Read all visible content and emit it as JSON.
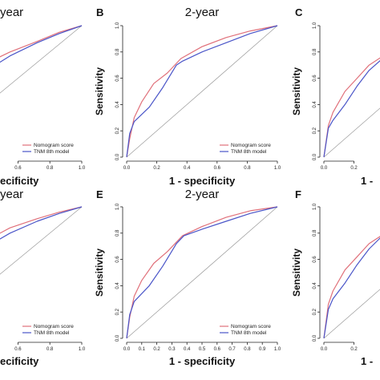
{
  "figure": {
    "background": "#ffffff"
  },
  "colors": {
    "nomogram": "#e0707a",
    "tnm": "#4a55c8",
    "diagonal": "#999999",
    "axis": "#222222"
  },
  "chart_data": [
    {
      "id": "A",
      "panel_label": "",
      "type": "line",
      "title": "year",
      "xlabel": "ecificity",
      "ylabel": "",
      "xlim": [
        0,
        1
      ],
      "ylim": [
        0,
        1
      ],
      "x_ticks": [
        0.6,
        0.8,
        1.0
      ],
      "x_tick_labels": [
        "0.6",
        "0.8",
        "1.0"
      ],
      "y_ticks": [],
      "y_tick_labels": [],
      "legend": {
        "position": "bottom-right",
        "entries": [
          "Nomogram score",
          "TNM 8th model"
        ]
      },
      "series": [
        {
          "name": "Nomogram score",
          "color": "#e0707a",
          "x": [
            0.0,
            0.2,
            0.38,
            0.55,
            0.72,
            0.86,
            1.0
          ],
          "y": [
            0.0,
            0.52,
            0.7,
            0.8,
            0.88,
            0.95,
            1.0
          ]
        },
        {
          "name": "TNM 8th model",
          "color": "#4a55c8",
          "x": [
            0.0,
            0.2,
            0.38,
            0.55,
            0.72,
            0.86,
            1.0
          ],
          "y": [
            0.0,
            0.47,
            0.64,
            0.77,
            0.87,
            0.94,
            1.0
          ]
        }
      ]
    },
    {
      "id": "B",
      "panel_label": "B",
      "type": "line",
      "title": "2-year",
      "xlabel": "1 - specificity",
      "ylabel": "Sensitivity",
      "xlim": [
        0,
        1
      ],
      "ylim": [
        0,
        1
      ],
      "x_ticks": [
        0,
        0.2,
        0.4,
        0.6,
        0.8,
        1.0
      ],
      "x_tick_labels": [
        "0.0",
        "0.2",
        "0.4",
        "0.6",
        "0.8",
        "1.0"
      ],
      "y_ticks": [
        0,
        0.2,
        0.4,
        0.6,
        0.8,
        1.0
      ],
      "y_tick_labels": [
        "0.0",
        "0.2",
        "0.4",
        "0.6",
        "0.8",
        "1.0"
      ],
      "legend": {
        "position": "bottom-right",
        "entries": [
          "Nomogram score",
          "TNM 8th model"
        ]
      },
      "series": [
        {
          "name": "Nomogram score",
          "color": "#e0707a",
          "x": [
            0.0,
            0.02,
            0.05,
            0.1,
            0.18,
            0.27,
            0.36,
            0.5,
            0.66,
            0.82,
            1.0
          ],
          "y": [
            0.0,
            0.14,
            0.3,
            0.42,
            0.56,
            0.64,
            0.75,
            0.84,
            0.91,
            0.96,
            1.0
          ]
        },
        {
          "name": "TNM 8th model",
          "color": "#4a55c8",
          "x": [
            0.0,
            0.02,
            0.05,
            0.15,
            0.24,
            0.33,
            0.37,
            0.5,
            0.66,
            0.82,
            1.0
          ],
          "y": [
            0.0,
            0.18,
            0.27,
            0.38,
            0.53,
            0.7,
            0.73,
            0.8,
            0.87,
            0.94,
            1.0
          ]
        }
      ]
    },
    {
      "id": "C",
      "panel_label": "C",
      "type": "line",
      "title": "",
      "xlabel": "1 -",
      "ylabel": "Sensitivity",
      "xlim": [
        0,
        1
      ],
      "ylim": [
        0,
        1
      ],
      "x_ticks": [
        0,
        0.2
      ],
      "x_tick_labels": [
        "0.0",
        "0.2"
      ],
      "y_ticks": [
        0,
        0.2,
        0.4,
        0.6,
        0.8,
        1.0
      ],
      "y_tick_labels": [
        "0.0",
        "0.2",
        "0.4",
        "0.6",
        "0.8",
        "1.0"
      ],
      "legend": null,
      "series": [
        {
          "name": "Nomogram score",
          "color": "#e0707a",
          "x": [
            0.0,
            0.03,
            0.06,
            0.14,
            0.22,
            0.3,
            0.38,
            0.5,
            0.7,
            1.0
          ],
          "y": [
            0.0,
            0.24,
            0.34,
            0.5,
            0.6,
            0.7,
            0.76,
            0.82,
            0.9,
            1.0
          ]
        },
        {
          "name": "TNM 8th model",
          "color": "#4a55c8",
          "x": [
            0.0,
            0.03,
            0.06,
            0.14,
            0.22,
            0.3,
            0.38,
            0.5,
            0.7,
            1.0
          ],
          "y": [
            0.0,
            0.22,
            0.28,
            0.4,
            0.54,
            0.66,
            0.74,
            0.8,
            0.89,
            1.0
          ]
        }
      ]
    },
    {
      "id": "D",
      "panel_label": "",
      "type": "line",
      "title": "year",
      "xlabel": "ecificity",
      "ylabel": "",
      "xlim": [
        0,
        1
      ],
      "ylim": [
        0,
        1
      ],
      "x_ticks": [
        0.6,
        0.8,
        1.0
      ],
      "x_tick_labels": [
        "0.6",
        "0.8",
        "1.0"
      ],
      "y_ticks": [],
      "y_tick_labels": [],
      "legend": {
        "position": "bottom-right",
        "entries": [
          "Nomogram score",
          "TNM 8th model"
        ]
      },
      "series": [
        {
          "name": "Nomogram score",
          "color": "#e0707a",
          "x": [
            0.0,
            0.2,
            0.38,
            0.55,
            0.72,
            0.86,
            1.0
          ],
          "y": [
            0.0,
            0.55,
            0.73,
            0.84,
            0.91,
            0.96,
            1.0
          ]
        },
        {
          "name": "TNM 8th model",
          "color": "#4a55c8",
          "x": [
            0.0,
            0.2,
            0.38,
            0.55,
            0.72,
            0.86,
            1.0
          ],
          "y": [
            0.0,
            0.5,
            0.68,
            0.8,
            0.89,
            0.95,
            1.0
          ]
        }
      ]
    },
    {
      "id": "E",
      "panel_label": "E",
      "type": "line",
      "title": "2-year",
      "xlabel": "1 - specificity",
      "ylabel": "Sensitivity",
      "xlim": [
        0,
        1
      ],
      "ylim": [
        0,
        1
      ],
      "x_ticks": [
        0,
        0.1,
        0.2,
        0.3,
        0.4,
        0.5,
        0.6,
        0.7,
        0.8,
        0.9,
        1.0
      ],
      "x_tick_labels": [
        "0.0",
        "0.1",
        "0.2",
        "0.3",
        "0.4",
        "0.5",
        "0.6",
        "0.7",
        "0.8",
        "0.9",
        "1.0"
      ],
      "y_ticks": [
        0,
        0.2,
        0.4,
        0.6,
        0.8,
        1.0
      ],
      "y_tick_labels": [
        "0.0",
        "0.2",
        "0.4",
        "0.6",
        "0.8",
        "1.0"
      ],
      "legend": {
        "position": "bottom-right",
        "entries": [
          "Nomogram score",
          "TNM 8th model"
        ]
      },
      "series": [
        {
          "name": "Nomogram score",
          "color": "#e0707a",
          "x": [
            0.0,
            0.02,
            0.05,
            0.1,
            0.18,
            0.27,
            0.37,
            0.5,
            0.66,
            0.82,
            1.0
          ],
          "y": [
            0.0,
            0.16,
            0.32,
            0.44,
            0.57,
            0.66,
            0.78,
            0.85,
            0.92,
            0.97,
            1.0
          ]
        },
        {
          "name": "TNM 8th model",
          "color": "#4a55c8",
          "x": [
            0.0,
            0.02,
            0.05,
            0.15,
            0.24,
            0.33,
            0.38,
            0.5,
            0.66,
            0.82,
            1.0
          ],
          "y": [
            0.0,
            0.18,
            0.28,
            0.4,
            0.55,
            0.72,
            0.78,
            0.83,
            0.89,
            0.95,
            1.0
          ]
        }
      ]
    },
    {
      "id": "F",
      "panel_label": "F",
      "type": "line",
      "title": "",
      "xlabel": "1 -",
      "ylabel": "Sensitivity",
      "xlim": [
        0,
        1
      ],
      "ylim": [
        0,
        1
      ],
      "x_ticks": [
        0,
        0.2
      ],
      "x_tick_labels": [
        "0.0",
        "0.2"
      ],
      "y_ticks": [
        0,
        0.2,
        0.4,
        0.6,
        0.8,
        1.0
      ],
      "y_tick_labels": [
        "0.0",
        "0.2",
        "0.4",
        "0.6",
        "0.8",
        "1.0"
      ],
      "legend": null,
      "series": [
        {
          "name": "Nomogram score",
          "color": "#e0707a",
          "x": [
            0.0,
            0.03,
            0.06,
            0.14,
            0.22,
            0.3,
            0.38,
            0.5,
            0.7,
            1.0
          ],
          "y": [
            0.0,
            0.26,
            0.36,
            0.52,
            0.62,
            0.72,
            0.78,
            0.84,
            0.91,
            1.0
          ]
        },
        {
          "name": "TNM 8th model",
          "color": "#4a55c8",
          "x": [
            0.0,
            0.03,
            0.06,
            0.14,
            0.22,
            0.3,
            0.38,
            0.5,
            0.7,
            1.0
          ],
          "y": [
            0.0,
            0.22,
            0.3,
            0.42,
            0.56,
            0.68,
            0.77,
            0.82,
            0.9,
            1.0
          ]
        }
      ]
    }
  ]
}
